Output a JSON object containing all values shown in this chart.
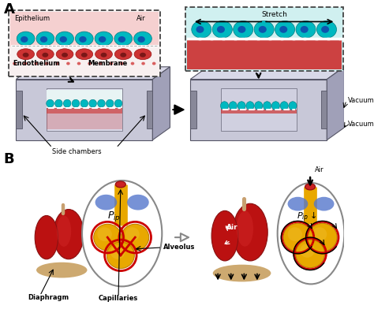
{
  "bg_color": "#ffffff",
  "label_A": "A",
  "label_B": "B",
  "panel_A_labels": {
    "epithelium": "Epithelium",
    "air": "Air",
    "endothelium": "Endothelium",
    "membrane": "Membrane",
    "side_chambers": "Side chambers",
    "stretch": "Stretch",
    "vacuum": "Vacuum",
    "vacuum2": "Vacuum"
  },
  "panel_B_labels": {
    "capillaries": "Capillaries",
    "alveolus": "Alveolus",
    "diaphragm": "Diaphragm",
    "air": "Air",
    "pip": "$P_{ip}$",
    "pip2": "$P_{ip}\\downarrow$"
  },
  "teal_color": "#00b8c0",
  "teal_dark": "#007a80",
  "red_cell_color": "#cc2222",
  "pink_bg": "#f5d0d0",
  "lung_red": "#bb1111",
  "lung_dark": "#881111",
  "alveolus_gold": "#e8a800",
  "alveolus_dark": "#c08000",
  "capillary_red": "#cc0000",
  "diaphragm_blue": "#5577cc",
  "chip_face": "#c8c8d8",
  "chip_top": "#d8d8e8",
  "chip_side": "#a0a0b8",
  "chip_inner": "#e0e0ee",
  "chip_channel": "#b8b8cc",
  "white_mem": "#f0f0f0",
  "bronchi_color": "#c8a070",
  "trachea_color": "#c8a070"
}
